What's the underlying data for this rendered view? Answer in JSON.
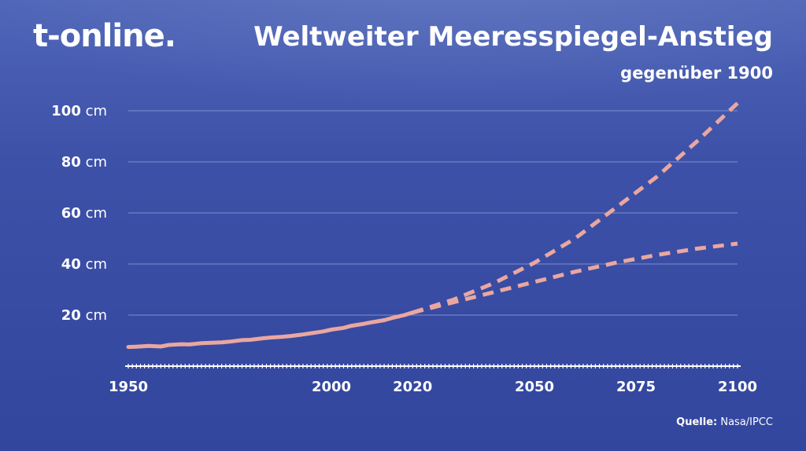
{
  "brand": {
    "logo_text": "t-online."
  },
  "header": {
    "title": "Weltweiter Meeresspiegel-Anstieg",
    "subtitle": "gegenüber 1900"
  },
  "source": {
    "label": "Quelle:",
    "text": "Nasa/IPCC"
  },
  "colors": {
    "background": "#3d51a8",
    "line": "#eaa7a0",
    "grid": "#8ea0d8",
    "text": "#ffffff"
  },
  "chart_data": {
    "type": "line",
    "title": "Weltweiter Meeresspiegel-Anstieg",
    "subtitle": "gegenüber 1900",
    "y_unit": "cm",
    "xlim": [
      1950,
      2100
    ],
    "ylim": [
      0,
      100
    ],
    "x_ticks": [
      1950,
      2000,
      2020,
      2050,
      2075,
      2100
    ],
    "y_ticks": [
      20,
      40,
      60,
      80,
      100
    ],
    "grid": true,
    "series": [
      {
        "style": "solid",
        "x": [
          1950,
          1952,
          1955,
          1958,
          1960,
          1963,
          1965,
          1968,
          1970,
          1973,
          1975,
          1978,
          1980,
          1983,
          1985,
          1988,
          1990,
          1993,
          1995,
          1998,
          2000,
          2003,
          2005,
          2008,
          2010,
          2013,
          2015,
          2018,
          2020
        ],
        "y": [
          7.5,
          7.6,
          7.9,
          7.7,
          8.3,
          8.6,
          8.5,
          9.0,
          9.1,
          9.3,
          9.6,
          10.2,
          10.3,
          10.9,
          11.2,
          11.5,
          11.8,
          12.4,
          12.9,
          13.6,
          14.3,
          15.0,
          15.8,
          16.6,
          17.2,
          18.0,
          18.9,
          20.0,
          21.0
        ]
      },
      {
        "style": "dashed",
        "x": [
          2020,
          2030,
          2040,
          2050,
          2060,
          2070,
          2080,
          2090,
          2100
        ],
        "y": [
          21.0,
          26.0,
          32.5,
          40.5,
          50.0,
          62.0,
          74.0,
          88.0,
          103.0
        ]
      },
      {
        "style": "dashed",
        "x": [
          2020,
          2030,
          2040,
          2050,
          2060,
          2070,
          2080,
          2090,
          2100
        ],
        "y": [
          21.0,
          25.0,
          29.0,
          33.0,
          37.0,
          40.5,
          43.5,
          46.0,
          48.0
        ]
      }
    ]
  }
}
